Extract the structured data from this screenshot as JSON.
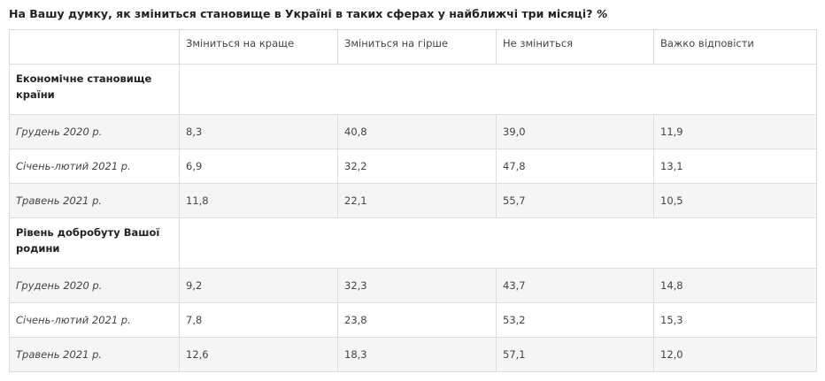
{
  "title": {
    "text": "На Вашу думку, як зміниться становище в Україні в таких сферах у найближчі три місяці?",
    "unit": "%"
  },
  "table": {
    "columns": [
      "",
      "Зміниться на краще",
      "Зміниться на гірше",
      "Не зміниться",
      "Важко відповісти"
    ],
    "sections": [
      {
        "label": "Економічне становище країни",
        "rows": [
          {
            "period": "Грудень 2020 р.",
            "values": [
              "8,3",
              "40,8",
              "39,0",
              "11,9"
            ]
          },
          {
            "period": "Січень-лютий 2021 р.",
            "values": [
              "6,9",
              "32,2",
              "47,8",
              "13,1"
            ]
          },
          {
            "period": "Травень 2021 р.",
            "values": [
              "11,8",
              "22,1",
              "55,7",
              "10,5"
            ]
          }
        ]
      },
      {
        "label": "Рівень добробуту Вашої родини",
        "rows": [
          {
            "period": "Грудень 2020 р.",
            "values": [
              "9,2",
              "32,3",
              "43,7",
              "14,8"
            ]
          },
          {
            "period": "Січень-лютий 2021 р.",
            "values": [
              "7,8",
              "23,8",
              "53,2",
              "15,3"
            ]
          },
          {
            "period": "Травень 2021 р.",
            "values": [
              "12,6",
              "18,3",
              "57,1",
              "12,0"
            ]
          }
        ]
      }
    ]
  }
}
